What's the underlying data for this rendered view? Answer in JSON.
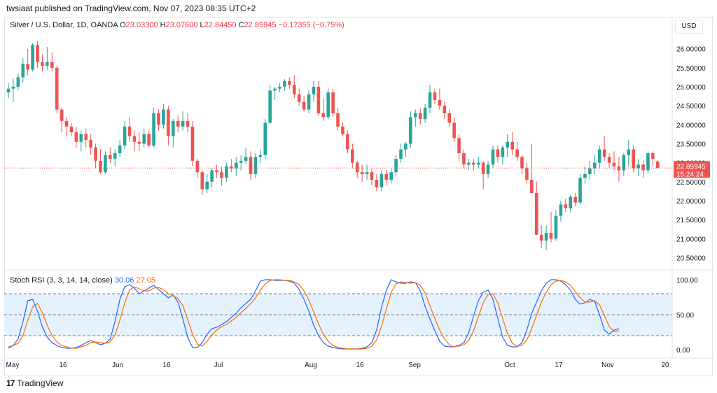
{
  "header": {
    "published": "twsiaat published on TradingView.com, Nov 07, 2023 08:35 UTC+2"
  },
  "legend": {
    "symbol": "Silver / U.S. Dollar, 1D, OANDA",
    "o_label": "O",
    "o": "23.03300",
    "h_label": "H",
    "h": "23.07600",
    "l_label": "L",
    "l": "22.84450",
    "c_label": "C",
    "c": "22.85945",
    "change": "−0.17355 (−0.75%)"
  },
  "currency_button": "USD",
  "price_label": {
    "value": "22.85945",
    "countdown": "15:24:24"
  },
  "rsi_legend": {
    "title": "Stoch RSI (3, 3, 14, 14, close)",
    "k": "30.06",
    "d": "27.05"
  },
  "brand": {
    "logo": "17",
    "name": "TradingView"
  },
  "colors": {
    "up": "#26a69a",
    "down": "#ef5350",
    "k": "#2962ff",
    "d": "#ff6d00",
    "band": "#e3f2fd"
  },
  "chart_data": [
    {
      "type": "candlestick",
      "title": "Silver / U.S. Dollar, 1D, OANDA",
      "ylim": [
        20.25,
        26.4
      ],
      "y_ticks": [
        "26.00000",
        "25.50000",
        "25.00000",
        "24.50000",
        "24.00000",
        "23.50000",
        "23.00000",
        "22.50000",
        "22.00000",
        "21.50000",
        "21.00000",
        "20.50000"
      ],
      "x_ticks": [
        "May",
        "16",
        "Jun",
        "16",
        "Jul",
        "Aug",
        "16",
        "Sep",
        "Oct",
        "17",
        "Nov",
        "20"
      ],
      "last_price": 22.85945,
      "grid": false,
      "candles_ohlc": [
        [
          24.85,
          25.1,
          24.7,
          24.95
        ],
        [
          24.95,
          25.2,
          24.6,
          25.0
        ],
        [
          25.0,
          25.35,
          24.9,
          25.25
        ],
        [
          25.25,
          25.75,
          25.1,
          25.6
        ],
        [
          25.6,
          26.0,
          25.3,
          25.45
        ],
        [
          25.45,
          26.15,
          25.4,
          26.1
        ],
        [
          26.1,
          26.2,
          25.5,
          25.65
        ],
        [
          25.65,
          25.85,
          25.4,
          25.55
        ],
        [
          25.55,
          26.05,
          25.45,
          25.65
        ],
        [
          25.65,
          25.9,
          25.4,
          25.5
        ],
        [
          25.5,
          25.55,
          24.3,
          24.4
        ],
        [
          24.4,
          24.45,
          23.8,
          24.1
        ],
        [
          24.1,
          24.2,
          23.7,
          23.95
        ],
        [
          23.95,
          24.05,
          23.7,
          23.8
        ],
        [
          23.8,
          23.95,
          23.4,
          23.55
        ],
        [
          23.55,
          23.85,
          23.3,
          23.75
        ],
        [
          23.75,
          23.9,
          23.4,
          23.6
        ],
        [
          23.6,
          23.75,
          23.2,
          23.4
        ],
        [
          23.4,
          23.5,
          22.85,
          23.05
        ],
        [
          23.05,
          23.35,
          22.7,
          22.75
        ],
        [
          22.75,
          23.3,
          22.7,
          23.2
        ],
        [
          23.2,
          23.4,
          23.0,
          23.1
        ],
        [
          23.1,
          23.35,
          22.9,
          23.25
        ],
        [
          23.25,
          23.6,
          23.15,
          23.45
        ],
        [
          23.45,
          24.1,
          23.35,
          23.95
        ],
        [
          23.95,
          24.2,
          23.55,
          23.7
        ],
        [
          23.7,
          23.85,
          23.3,
          23.55
        ],
        [
          23.55,
          23.8,
          23.3,
          23.5
        ],
        [
          23.5,
          23.9,
          23.4,
          23.75
        ],
        [
          23.75,
          23.85,
          23.4,
          23.45
        ],
        [
          23.45,
          24.45,
          23.4,
          24.3
        ],
        [
          24.3,
          24.4,
          23.85,
          24.0
        ],
        [
          24.0,
          24.55,
          23.9,
          24.4
        ],
        [
          24.4,
          24.5,
          23.45,
          23.7
        ],
        [
          23.7,
          24.15,
          23.4,
          24.1
        ],
        [
          24.1,
          24.25,
          23.8,
          23.95
        ],
        [
          23.95,
          24.35,
          23.85,
          24.1
        ],
        [
          24.1,
          24.3,
          23.8,
          23.95
        ],
        [
          23.95,
          24.1,
          22.9,
          23.05
        ],
        [
          23.05,
          23.1,
          22.6,
          22.75
        ],
        [
          22.75,
          22.8,
          22.15,
          22.3
        ],
        [
          22.3,
          22.7,
          22.2,
          22.5
        ],
        [
          22.5,
          22.85,
          22.35,
          22.8
        ],
        [
          22.8,
          22.95,
          22.6,
          22.75
        ],
        [
          22.75,
          22.9,
          22.4,
          22.6
        ],
        [
          22.6,
          23.0,
          22.5,
          22.9
        ],
        [
          22.9,
          23.1,
          22.75,
          22.85
        ],
        [
          22.85,
          23.15,
          22.65,
          23.0
        ],
        [
          23.0,
          23.2,
          22.8,
          23.05
        ],
        [
          23.05,
          23.4,
          22.95,
          23.15
        ],
        [
          23.15,
          23.3,
          22.55,
          22.7
        ],
        [
          22.7,
          23.25,
          22.6,
          23.15
        ],
        [
          23.15,
          23.35,
          23.0,
          23.2
        ],
        [
          23.2,
          24.15,
          23.1,
          24.05
        ],
        [
          24.05,
          25.05,
          24.0,
          24.9
        ],
        [
          24.9,
          25.0,
          24.65,
          24.95
        ],
        [
          24.95,
          25.1,
          24.85,
          25.0
        ],
        [
          25.0,
          25.2,
          24.9,
          25.15
        ],
        [
          25.15,
          25.25,
          24.95,
          25.05
        ],
        [
          25.05,
          25.3,
          24.7,
          24.8
        ],
        [
          24.8,
          24.95,
          24.5,
          24.6
        ],
        [
          24.6,
          24.75,
          24.35,
          24.4
        ],
        [
          24.4,
          24.9,
          24.3,
          24.8
        ],
        [
          24.8,
          25.15,
          24.6,
          25.0
        ],
        [
          25.0,
          25.15,
          24.25,
          24.3
        ],
        [
          24.3,
          24.7,
          24.1,
          24.2
        ],
        [
          24.2,
          24.95,
          24.15,
          24.85
        ],
        [
          24.85,
          24.95,
          24.2,
          24.3
        ],
        [
          24.3,
          24.45,
          23.85,
          23.95
        ],
        [
          23.95,
          24.05,
          23.7,
          23.75
        ],
        [
          23.75,
          23.85,
          23.25,
          23.35
        ],
        [
          23.35,
          23.5,
          22.85,
          23.0
        ],
        [
          23.0,
          23.05,
          22.6,
          22.75
        ],
        [
          22.75,
          22.95,
          22.5,
          22.7
        ],
        [
          22.7,
          22.95,
          22.55,
          22.75
        ],
        [
          22.75,
          22.85,
          22.4,
          22.55
        ],
        [
          22.55,
          22.7,
          22.25,
          22.35
        ],
        [
          22.35,
          22.8,
          22.25,
          22.7
        ],
        [
          22.7,
          22.8,
          22.4,
          22.55
        ],
        [
          22.55,
          22.85,
          22.45,
          22.75
        ],
        [
          22.75,
          23.2,
          22.65,
          23.1
        ],
        [
          23.1,
          23.5,
          23.0,
          23.35
        ],
        [
          23.35,
          23.55,
          23.15,
          23.5
        ],
        [
          23.5,
          24.35,
          23.4,
          24.2
        ],
        [
          24.2,
          24.4,
          23.95,
          24.3
        ],
        [
          24.3,
          24.45,
          24.0,
          24.15
        ],
        [
          24.15,
          24.55,
          24.05,
          24.45
        ],
        [
          24.45,
          25.05,
          24.3,
          24.85
        ],
        [
          24.85,
          24.95,
          24.55,
          24.65
        ],
        [
          24.65,
          24.95,
          24.4,
          24.5
        ],
        [
          24.5,
          24.6,
          24.15,
          24.3
        ],
        [
          24.3,
          24.4,
          23.95,
          24.05
        ],
        [
          24.05,
          24.2,
          23.55,
          23.65
        ],
        [
          23.65,
          23.75,
          23.05,
          23.25
        ],
        [
          23.25,
          23.35,
          22.85,
          22.95
        ],
        [
          22.95,
          23.1,
          22.8,
          23.0
        ],
        [
          23.0,
          23.1,
          22.8,
          22.95
        ],
        [
          22.95,
          23.15,
          22.85,
          23.0
        ],
        [
          23.0,
          23.05,
          22.3,
          22.7
        ],
        [
          22.7,
          23.05,
          22.6,
          22.95
        ],
        [
          22.95,
          23.45,
          22.85,
          23.35
        ],
        [
          23.35,
          23.45,
          23.0,
          23.15
        ],
        [
          23.15,
          23.45,
          22.95,
          23.4
        ],
        [
          23.4,
          23.75,
          23.15,
          23.55
        ],
        [
          23.55,
          23.8,
          23.2,
          23.35
        ],
        [
          23.35,
          23.55,
          23.05,
          23.15
        ],
        [
          23.15,
          23.2,
          22.7,
          22.85
        ],
        [
          22.85,
          23.0,
          22.45,
          22.55
        ],
        [
          22.55,
          23.5,
          22.3,
          22.2
        ],
        [
          22.2,
          22.5,
          21.1,
          21.1
        ],
        [
          21.1,
          21.35,
          20.75,
          20.95
        ],
        [
          20.95,
          21.35,
          20.7,
          21.15
        ],
        [
          21.15,
          21.7,
          20.9,
          21.0
        ],
        [
          21.0,
          21.75,
          20.95,
          21.6
        ],
        [
          21.6,
          22.0,
          21.45,
          21.9
        ],
        [
          21.9,
          22.05,
          21.7,
          21.8
        ],
        [
          21.8,
          22.15,
          21.7,
          22.1
        ],
        [
          22.1,
          22.2,
          21.85,
          21.95
        ],
        [
          21.95,
          22.7,
          21.9,
          22.6
        ],
        [
          22.6,
          22.9,
          22.45,
          22.7
        ],
        [
          22.7,
          23.05,
          22.55,
          22.85
        ],
        [
          22.85,
          23.2,
          22.7,
          23.0
        ],
        [
          23.0,
          23.45,
          22.85,
          23.35
        ],
        [
          23.35,
          23.7,
          23.05,
          23.15
        ],
        [
          23.15,
          23.25,
          22.85,
          23.0
        ],
        [
          23.0,
          23.3,
          22.8,
          22.9
        ],
        [
          22.9,
          23.15,
          22.5,
          22.8
        ],
        [
          22.8,
          23.25,
          22.65,
          23.2
        ],
        [
          23.2,
          23.6,
          22.9,
          23.35
        ],
        [
          23.35,
          23.45,
          22.75,
          22.85
        ],
        [
          22.85,
          23.1,
          22.65,
          22.95
        ],
        [
          22.95,
          23.05,
          22.6,
          22.8
        ],
        [
          22.8,
          23.3,
          22.7,
          23.25
        ],
        [
          23.25,
          23.3,
          22.9,
          23.1
        ],
        [
          23.03,
          23.08,
          22.84,
          22.86
        ]
      ]
    },
    {
      "type": "line",
      "title": "Stoch RSI (3, 3, 14, 14, close)",
      "ylim": [
        -8,
        108
      ],
      "y_ticks": [
        "100.00",
        "50.00",
        "0.00"
      ],
      "bands": [
        20,
        50,
        80
      ],
      "series": [
        {
          "name": "K",
          "values": [
            2,
            6,
            15,
            40,
            70,
            72,
            55,
            33,
            18,
            10,
            6,
            3,
            2,
            2,
            3,
            6,
            10,
            13,
            10,
            7,
            9,
            15,
            40,
            72,
            90,
            93,
            88,
            80,
            84,
            88,
            92,
            86,
            80,
            74,
            78,
            68,
            44,
            18,
            3,
            3,
            10,
            22,
            30,
            32,
            36,
            40,
            46,
            52,
            60,
            66,
            72,
            84,
            98,
            100,
            100,
            99,
            99,
            99,
            98,
            95,
            86,
            72,
            55,
            35,
            20,
            10,
            5,
            3,
            2,
            1,
            1,
            1,
            1,
            2,
            4,
            10,
            28,
            60,
            85,
            100,
            97,
            95,
            95,
            97,
            96,
            84,
            62,
            44,
            27,
            12,
            5,
            4,
            4,
            6,
            10,
            24,
            48,
            70,
            82,
            85,
            72,
            45,
            18,
            6,
            4,
            4,
            10,
            28,
            52,
            68,
            84,
            95,
            100,
            100,
            98,
            93,
            85,
            72,
            65,
            67,
            72,
            69,
            50,
            28,
            22,
            28,
            30
          ]
        },
        {
          "name": "D",
          "values": [
            4,
            6,
            9,
            20,
            42,
            61,
            66,
            53,
            35,
            20,
            11,
            6,
            4,
            2,
            2,
            4,
            6,
            10,
            11,
            10,
            9,
            11,
            21,
            42,
            67,
            85,
            90,
            87,
            84,
            84,
            88,
            89,
            86,
            80,
            77,
            73,
            63,
            43,
            22,
            8,
            5,
            12,
            21,
            28,
            33,
            36,
            41,
            46,
            53,
            59,
            66,
            74,
            85,
            94,
            99,
            100,
            100,
            99,
            99,
            97,
            93,
            84,
            71,
            54,
            37,
            22,
            12,
            6,
            3,
            2,
            1,
            1,
            1,
            1,
            2,
            5,
            14,
            33,
            58,
            82,
            94,
            97,
            96,
            95,
            96,
            92,
            81,
            63,
            45,
            28,
            15,
            7,
            4,
            5,
            7,
            13,
            27,
            47,
            67,
            79,
            80,
            67,
            45,
            23,
            9,
            5,
            6,
            14,
            30,
            49,
            68,
            82,
            93,
            98,
            99,
            97,
            92,
            83,
            74,
            68,
            68,
            70,
            64,
            49,
            33,
            26,
            27
          ]
        }
      ]
    }
  ]
}
